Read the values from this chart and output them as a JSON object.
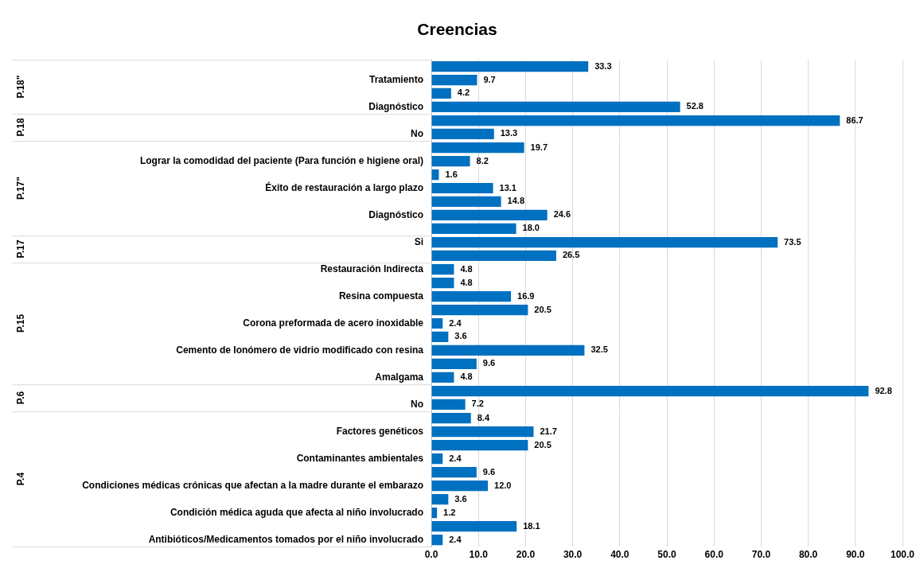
{
  "chart_data": [
    {
      "type": "bar",
      "orientation": "horizontal",
      "title": "Creencias",
      "ylabel": "P.18\"",
      "categories": [
        null,
        "Tratamiento",
        null,
        "Diagnóstico"
      ],
      "series": [
        {
          "color": "#0070c0",
          "values": [
            33.3,
            9.7,
            4.2,
            52.8
          ],
          "value_labels": [
            "33.3",
            "9.7",
            "4.2",
            "52.8"
          ]
        }
      ],
      "xlim": [
        0,
        100
      ],
      "grid": "x",
      "tick_labels": "y"
    },
    {
      "type": "bar",
      "orientation": "horizontal",
      "ylabel": "P.18",
      "categories": [
        null,
        "No"
      ],
      "series": [
        {
          "color": "#0070c0",
          "values": [
            86.7,
            13.3
          ],
          "value_labels": [
            "86.7",
            "13.3"
          ]
        }
      ],
      "xlim": [
        0,
        100
      ],
      "grid": "x",
      "tick_labels": "y"
    },
    {
      "type": "bar",
      "orientation": "horizontal",
      "ylabel": "P.17\"",
      "categories": [
        null,
        "Lograr la comodidad del paciente (Para función e higiene oral)",
        null,
        "Éxito de restauración a largo plazo",
        null,
        "Diagnóstico",
        null
      ],
      "series": [
        {
          "color": "#0070c0",
          "values": [
            19.7,
            8.2,
            1.6,
            13.1,
            14.8,
            24.6,
            18.0
          ],
          "value_labels": [
            "19.7",
            "8.2",
            "1.6",
            "13.1",
            "14.8",
            "24.6",
            "18.0"
          ]
        }
      ],
      "xlim": [
        0,
        100
      ],
      "grid": "x",
      "tick_labels": "y"
    },
    {
      "type": "bar",
      "orientation": "horizontal",
      "ylabel": "P.17",
      "categories": [
        "Si",
        null
      ],
      "series": [
        {
          "color": "#0070c0",
          "values": [
            73.5,
            26.5
          ],
          "value_labels": [
            "73.5",
            "26.5"
          ]
        }
      ],
      "xlim": [
        0,
        100
      ],
      "grid": "x",
      "tick_labels": "y"
    },
    {
      "type": "bar",
      "orientation": "horizontal",
      "ylabel": "P.15",
      "categories": [
        "Restauración Indirecta",
        null,
        "Resina compuesta",
        null,
        "Corona preformada de acero inoxidable",
        null,
        "Cemento de Ionómero de vidrio modificado con resina",
        null,
        "Amalgama"
      ],
      "series": [
        {
          "color": "#0070c0",
          "values": [
            4.8,
            4.8,
            16.9,
            20.5,
            2.4,
            3.6,
            32.5,
            9.6,
            4.8
          ],
          "value_labels": [
            "4.8",
            "4.8",
            "16.9",
            "20.5",
            "2.4",
            "3.6",
            "32.5",
            "9.6",
            "4.8"
          ]
        }
      ],
      "xlim": [
        0,
        100
      ],
      "grid": "x",
      "tick_labels": "y"
    },
    {
      "type": "bar",
      "orientation": "horizontal",
      "ylabel": "P.6",
      "categories": [
        null,
        "No"
      ],
      "series": [
        {
          "color": "#0070c0",
          "values": [
            92.8,
            7.2
          ],
          "value_labels": [
            "92.8",
            "7.2"
          ]
        }
      ],
      "xlim": [
        0,
        100
      ],
      "grid": "x",
      "tick_labels": "y"
    },
    {
      "type": "bar",
      "orientation": "horizontal",
      "ylabel": "P.4",
      "categories": [
        null,
        "Factores genéticos",
        null,
        "Contaminantes ambientales",
        null,
        "Condiciones médicas crónicas que afectan a la madre durante el embarazo",
        null,
        "Condición médica aguda que afecta al niño involucrado",
        null,
        "Antibióticos/Medicamentos tomados por el niño involucrado"
      ],
      "series": [
        {
          "color": "#0070c0",
          "values": [
            8.4,
            21.7,
            20.5,
            2.4,
            9.6,
            12.0,
            3.6,
            1.2,
            18.1,
            2.4
          ],
          "value_labels": [
            "8.4",
            "21.7",
            "20.5",
            "2.4",
            "9.6",
            "12.0",
            "3.6",
            "1.2",
            "18.1",
            "2.4"
          ]
        }
      ],
      "xlim": [
        0,
        100
      ],
      "xticks": [
        {
          "value": 0,
          "label": "0.0"
        },
        {
          "value": 10,
          "label": "10.0"
        },
        {
          "value": 20,
          "label": "20.0"
        },
        {
          "value": 30,
          "label": "30.0"
        },
        {
          "value": 40,
          "label": "40.0"
        },
        {
          "value": 50,
          "label": "50.0"
        },
        {
          "value": 60,
          "label": "60.0"
        },
        {
          "value": 70,
          "label": "70.0"
        },
        {
          "value": 80,
          "label": "80.0"
        },
        {
          "value": 90,
          "label": "90.0"
        },
        {
          "value": 100,
          "label": "100.0"
        }
      ],
      "grid": "x"
    }
  ]
}
